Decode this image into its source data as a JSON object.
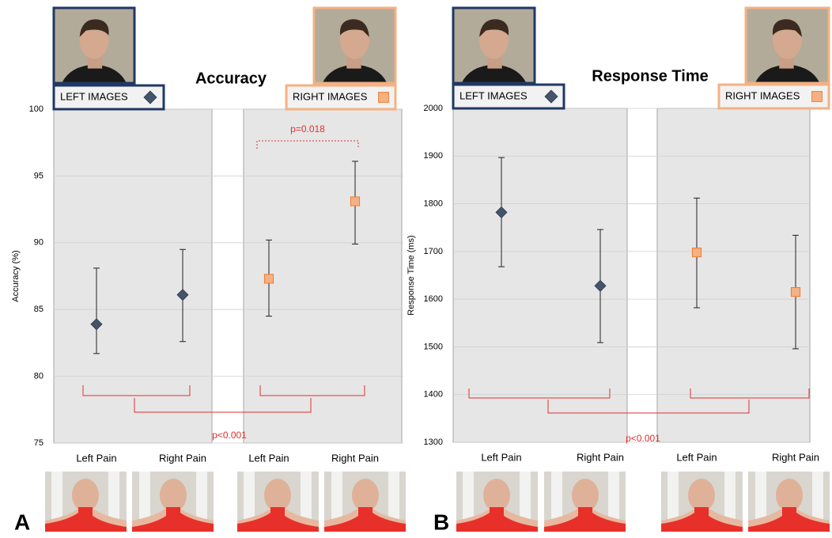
{
  "chart_data": [
    {
      "type": "point",
      "title": "Accuracy",
      "ylabel": "Accuracy (%)",
      "panel_label": "A",
      "categories": [
        "Left Pain",
        "Right Pain",
        "Left Pain",
        "Right Pain"
      ],
      "series": [
        {
          "name": "LEFT IMAGES",
          "color": "#44546a",
          "marker": "diamond",
          "values": [
            83.9,
            86.1,
            null,
            null
          ],
          "error_plus": [
            4.2,
            3.4,
            null,
            null
          ],
          "error_minus": [
            2.2,
            3.5,
            null,
            null
          ]
        },
        {
          "name": "RIGHT IMAGES",
          "color": "#f4b183",
          "marker": "square",
          "values": [
            null,
            null,
            87.3,
            93.1
          ],
          "error_plus": [
            null,
            null,
            2.9,
            3.0
          ],
          "error_minus": [
            null,
            null,
            2.8,
            3.2
          ]
        }
      ],
      "ylim": [
        75,
        100
      ],
      "yticks": [
        75,
        80,
        85,
        90,
        95,
        100
      ],
      "grid": true,
      "annotations": [
        "p=0.018",
        "p<0.001"
      ]
    },
    {
      "type": "point",
      "title": "Response Time",
      "ylabel": "Response Time  (ms)",
      "panel_label": "B",
      "categories": [
        "Left Pain",
        "Right Pain",
        "Left Pain",
        "Right Pain"
      ],
      "series": [
        {
          "name": "LEFT IMAGES",
          "color": "#44546a",
          "marker": "diamond",
          "values": [
            1782,
            1628,
            null,
            null
          ],
          "error_plus": [
            115,
            118,
            null,
            null
          ],
          "error_minus": [
            114,
            119,
            null,
            null
          ]
        },
        {
          "name": "RIGHT IMAGES",
          "color": "#f4b183",
          "marker": "square",
          "values": [
            null,
            null,
            1698,
            1615
          ],
          "error_plus": [
            null,
            null,
            114,
            119
          ],
          "error_minus": [
            null,
            null,
            116,
            119
          ]
        }
      ],
      "ylim": [
        1300,
        2000
      ],
      "yticks": [
        1300,
        1400,
        1500,
        1600,
        1700,
        1800,
        1900,
        2000
      ],
      "grid": true,
      "annotations": [
        "p<0.001"
      ]
    }
  ]
}
